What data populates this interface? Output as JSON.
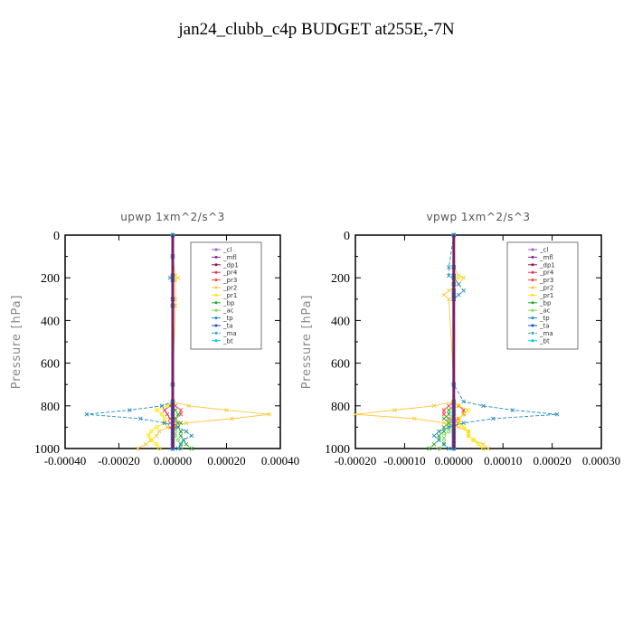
{
  "figure": {
    "title": "jan24_clubb_c4p  BUDGET at255E,-7N"
  },
  "chart_data": [
    {
      "type": "line",
      "title": "upwp   1xm^2/s^3",
      "ylabel": "Pressure [hPa]",
      "ylim": [
        1000,
        0
      ],
      "xlim": [
        -0.0004,
        0.0004
      ],
      "xticks": [
        "-0.00040",
        "-0.00020",
        "0.00000",
        "0.00020",
        "0.00040"
      ],
      "yticks": [
        "0",
        "200",
        "400",
        "600",
        "800",
        "1000"
      ],
      "legend_position": "top-right",
      "y": [
        0,
        100,
        190,
        200,
        210,
        300,
        330,
        700,
        780,
        800,
        820,
        840,
        860,
        880,
        900,
        920,
        940,
        960,
        980,
        1000
      ],
      "series": [
        {
          "name": "_cl",
          "color": "#9b59d0",
          "marker": "o",
          "values": [
            0,
            0,
            0,
            0,
            0,
            0,
            0,
            0,
            0,
            0,
            0,
            0,
            0,
            0,
            0,
            0,
            0,
            0,
            0,
            0
          ]
        },
        {
          "name": "_mfl",
          "color": "#8e24aa",
          "marker": "d",
          "values": [
            0,
            0,
            0,
            0,
            0,
            0,
            0,
            0,
            0,
            0,
            0,
            0,
            0,
            0,
            0,
            0,
            0,
            0,
            0,
            0
          ]
        },
        {
          "name": "_dp1",
          "color": "#8b1a4a",
          "marker": "d",
          "values": [
            0,
            0,
            0,
            0,
            0,
            0,
            0,
            0,
            0,
            0,
            0,
            0,
            0,
            0,
            0,
            0,
            0,
            0,
            0,
            0
          ]
        },
        {
          "name": "_pr4",
          "color": "#e0305a",
          "marker": "x",
          "values": [
            0,
            0,
            0,
            0,
            0,
            0,
            0,
            0,
            0,
            -1e-05,
            -3e-05,
            -2e-05,
            -1e-05,
            2e-05,
            -1e-05,
            0,
            0,
            0,
            0,
            0
          ]
        },
        {
          "name": "_pr3",
          "color": "#ff4040",
          "marker": "x",
          "values": [
            0,
            0,
            0,
            0,
            0,
            0,
            0,
            0,
            0,
            1e-05,
            3e-05,
            3e-05,
            1e-05,
            -1e-05,
            1e-05,
            0,
            0,
            0,
            0,
            0
          ]
        },
        {
          "name": "_pr2",
          "color": "#ffc83a",
          "marker": "x",
          "values": [
            0,
            0,
            1e-05,
            2e-05,
            1e-05,
            1e-05,
            1e-05,
            0,
            0,
            6e-05,
            0.0002,
            0.00036,
            0.00022,
            5e-05,
            -2e-05,
            -5e-05,
            -6e-05,
            -8e-05,
            -0.0001,
            -0.00013
          ]
        },
        {
          "name": "_pr1",
          "color": "#ffe800",
          "marker": "o",
          "values": [
            0,
            0,
            0,
            1e-05,
            0,
            0,
            0,
            0,
            0,
            -2e-05,
            -6e-05,
            -4e-05,
            -3e-05,
            -3e-05,
            -6e-05,
            -8e-05,
            -9e-05,
            -8e-05,
            -6e-05,
            -5e-05
          ]
        },
        {
          "name": "_bp",
          "color": "#22aa22",
          "marker": "x",
          "values": [
            0,
            0,
            0,
            0,
            0,
            0,
            0,
            0,
            0,
            0,
            1e-05,
            2e-05,
            1e-05,
            3e-05,
            2e-05,
            3e-05,
            3e-05,
            4e-05,
            5e-05,
            7e-05
          ]
        },
        {
          "name": "_ac",
          "color": "#7ed957",
          "marker": "o",
          "values": [
            0,
            0,
            0,
            0,
            0,
            0,
            0,
            0,
            0,
            0,
            0,
            0,
            1e-05,
            2e-05,
            1e-05,
            1e-05,
            1e-05,
            2e-05,
            3e-05,
            3e-05
          ]
        },
        {
          "name": "_tp",
          "color": "#1f8bbf",
          "marker": "x",
          "values": [
            0,
            0,
            0,
            -1e-05,
            0,
            0,
            0,
            0,
            0,
            -4e-05,
            -0.00016,
            -0.00032,
            -0.00012,
            -3e-05,
            2e-05,
            5e-05,
            7e-05,
            4e-05,
            3e-05,
            2e-05
          ]
        },
        {
          "name": "_ta",
          "color": "#1a4fbf",
          "marker": "x",
          "values": [
            0,
            0,
            0,
            0,
            0,
            0,
            0,
            0,
            0,
            0,
            0,
            0,
            0,
            0,
            0,
            0,
            0,
            0,
            0,
            0
          ]
        },
        {
          "name": "_ma",
          "color": "#3aa0c8",
          "marker": "none",
          "values": [
            0,
            0,
            0,
            0,
            0,
            0,
            0,
            0,
            0,
            0,
            0,
            0,
            0,
            0,
            0,
            0,
            0,
            0,
            0,
            0
          ]
        },
        {
          "name": "_bt",
          "color": "#00c8e0",
          "marker": "o",
          "values": [
            0,
            0,
            0,
            0,
            0,
            0,
            0,
            0,
            0,
            0,
            0,
            0,
            0,
            0,
            0,
            0,
            0,
            0,
            0,
            0
          ]
        }
      ]
    },
    {
      "type": "line",
      "title": "vpwp   1xm^2/s^3",
      "ylabel": "Pressure [hPa]",
      "ylim": [
        1000,
        0
      ],
      "xlim": [
        -0.0002,
        0.0003
      ],
      "xticks": [
        "-0.00020",
        "-0.00010",
        "0.00000",
        "0.00010",
        "0.00020",
        "0.00030"
      ],
      "yticks": [
        "0",
        "200",
        "400",
        "600",
        "800",
        "1000"
      ],
      "legend_position": "top-right",
      "y": [
        0,
        150,
        190,
        200,
        230,
        260,
        280,
        300,
        700,
        780,
        800,
        820,
        840,
        860,
        880,
        900,
        920,
        940,
        960,
        980,
        1000
      ],
      "series": [
        {
          "name": "_cl",
          "color": "#9b59d0",
          "marker": "o",
          "values": [
            0,
            0,
            0,
            0,
            0,
            0,
            0,
            0,
            0,
            0,
            0,
            0,
            0,
            0,
            0,
            0,
            0,
            0,
            0,
            0,
            0
          ]
        },
        {
          "name": "_mfl",
          "color": "#8e24aa",
          "marker": "d",
          "values": [
            0,
            0,
            0,
            0,
            0,
            0,
            0,
            0,
            0,
            0,
            0,
            0,
            0,
            0,
            0,
            0,
            0,
            0,
            0,
            0,
            0
          ]
        },
        {
          "name": "_dp1",
          "color": "#8b1a4a",
          "marker": "d",
          "values": [
            0,
            0,
            0,
            0,
            0,
            0,
            0,
            0,
            0,
            0,
            0,
            0,
            0,
            0,
            0,
            0,
            0,
            0,
            0,
            0,
            0
          ]
        },
        {
          "name": "_pr4",
          "color": "#e0305a",
          "marker": "x",
          "values": [
            0,
            0,
            0,
            0,
            0,
            0,
            0,
            0,
            0,
            0,
            1e-05,
            2e-05,
            2e-05,
            1e-05,
            -1e-05,
            0,
            0,
            0,
            0,
            0,
            0
          ]
        },
        {
          "name": "_pr3",
          "color": "#ff4040",
          "marker": "x",
          "values": [
            0,
            0,
            0,
            0,
            0,
            0,
            0,
            0,
            0,
            0,
            -1e-05,
            -2e-05,
            -2e-05,
            -1e-05,
            1e-05,
            0,
            0,
            0,
            0,
            0,
            0
          ]
        },
        {
          "name": "_pr2",
          "color": "#ffc83a",
          "marker": "x",
          "values": [
            0,
            0,
            1e-05,
            2e-05,
            1e-05,
            -1e-05,
            -2e-05,
            -1e-05,
            0,
            0,
            -4e-05,
            -0.00012,
            -0.0002,
            -8e-05,
            -2e-05,
            1e-05,
            3e-05,
            3e-05,
            4e-05,
            6e-05,
            7e-05
          ]
        },
        {
          "name": "_pr1",
          "color": "#ffe800",
          "marker": "o",
          "values": [
            0,
            0,
            0,
            1e-05,
            0,
            0,
            0,
            0,
            0,
            0,
            1e-05,
            3e-05,
            2e-05,
            1e-05,
            1e-05,
            2e-05,
            3e-05,
            3e-05,
            4e-05,
            5e-05,
            6e-05
          ]
        },
        {
          "name": "_bp",
          "color": "#22aa22",
          "marker": "x",
          "values": [
            0,
            0,
            0,
            0,
            0,
            0,
            0,
            0,
            0,
            0,
            0,
            -1e-05,
            -1e-05,
            -2e-05,
            -1e-05,
            -2e-05,
            -2e-05,
            -3e-05,
            -3e-05,
            -4e-05,
            -5e-05
          ]
        },
        {
          "name": "_ac",
          "color": "#7ed957",
          "marker": "o",
          "values": [
            0,
            0,
            0,
            0,
            0,
            0,
            0,
            0,
            0,
            0,
            0,
            0,
            0,
            -1e-05,
            -1e-05,
            -1e-05,
            -1e-05,
            -2e-05,
            -2e-05,
            -2e-05,
            -3e-05
          ]
        },
        {
          "name": "_tp",
          "color": "#1f8bbf",
          "marker": "x",
          "values": [
            0,
            -1e-05,
            -1e-05,
            0,
            1e-05,
            2e-05,
            1e-05,
            0,
            0,
            2e-05,
            6e-05,
            0.00012,
            0.00021,
            8e-05,
            2e-05,
            -1e-05,
            -3e-05,
            -4e-05,
            -3e-05,
            -2e-05,
            -1e-05
          ]
        },
        {
          "name": "_ta",
          "color": "#1a4fbf",
          "marker": "x",
          "values": [
            0,
            0,
            0,
            0,
            0,
            0,
            0,
            0,
            0,
            0,
            0,
            0,
            0,
            0,
            0,
            0,
            0,
            0,
            0,
            0,
            0
          ]
        },
        {
          "name": "_ma",
          "color": "#3aa0c8",
          "marker": "none",
          "values": [
            0,
            0,
            0,
            0,
            0,
            0,
            0,
            0,
            0,
            0,
            0,
            0,
            0,
            0,
            0,
            0,
            0,
            0,
            0,
            0,
            0
          ]
        },
        {
          "name": "_bt",
          "color": "#00c8e0",
          "marker": "o",
          "values": [
            0,
            0,
            0,
            0,
            0,
            0,
            0,
            0,
            0,
            0,
            0,
            0,
            0,
            0,
            0,
            0,
            0,
            0,
            0,
            0,
            0
          ]
        }
      ]
    }
  ]
}
